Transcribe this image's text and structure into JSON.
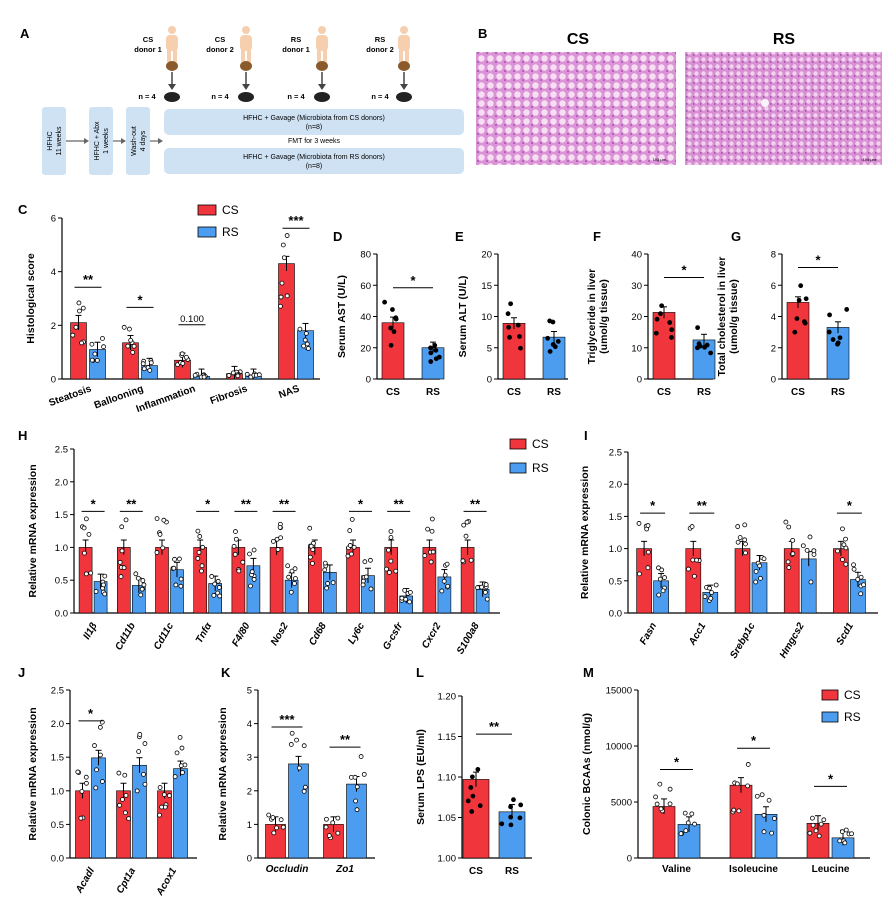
{
  "figure": {
    "colors": {
      "cs": "#f0363c",
      "rs": "#4c9cf0",
      "box": "#cfe2f3",
      "tissue": "#e3a6dc"
    }
  },
  "panelA": {
    "label": "A",
    "donors": [
      {
        "line1": "CS",
        "line2": "donor 1"
      },
      {
        "line1": "CS",
        "line2": "donor 2"
      },
      {
        "line1": "RS",
        "line2": "donor 1"
      },
      {
        "line1": "RS",
        "line2": "donor 2"
      }
    ],
    "n_labels": [
      "n = 4",
      "n = 4",
      "n = 4",
      "n = 4"
    ],
    "boxes": [
      {
        "line1": "HFHC",
        "line2": "11 weeks"
      },
      {
        "line1": "HFHC + Abx",
        "line2": "1 weeks"
      },
      {
        "line1": "Wash-out",
        "line2": "4 days"
      }
    ],
    "rows": [
      {
        "line1": "HFHC + Gavage (Microbiota from CS donors)",
        "line2": "(n=8)"
      },
      {
        "line1": "HFHC + Gavage (Microbiota from RS donors)",
        "line2": "(n=8)"
      }
    ],
    "middle": "FMT for 3 weeks"
  },
  "panelB": {
    "label": "B",
    "left": "CS",
    "right": "RS",
    "scale_left": "100 μm",
    "scale_right": "100 μm"
  },
  "legend": {
    "cs": "CS",
    "rs": "RS"
  },
  "chart_data": [
    {
      "panel": "C",
      "type": "bar",
      "ylabel": "Histological score",
      "ylim": [
        0,
        6
      ],
      "yticks": [
        "0",
        "2",
        "4",
        "6"
      ],
      "categories": [
        "Steatosis",
        "Ballooning",
        "Inflammation",
        "Fibrosis",
        "NAS"
      ],
      "series": [
        {
          "name": "CS",
          "values": [
            2.1,
            1.35,
            0.7,
            0.2,
            4.3
          ]
        },
        {
          "name": "RS",
          "values": [
            1.1,
            0.5,
            0.1,
            0.1,
            1.8
          ]
        }
      ],
      "significance": [
        "**",
        "*",
        "0.100",
        "",
        "***"
      ]
    },
    {
      "panel": "D",
      "type": "bar",
      "ylabel": "Serum AST (U/L)",
      "ylim": [
        0,
        80
      ],
      "yticks": [
        "0",
        "20",
        "40",
        "60",
        "80"
      ],
      "categories": [
        "CS",
        "RS"
      ],
      "values": [
        36,
        20
      ],
      "significance": [
        "*"
      ]
    },
    {
      "panel": "E",
      "type": "bar",
      "ylabel": "Serum ALT (U/L)",
      "ylim": [
        0,
        20
      ],
      "yticks": [
        "0",
        "5",
        "10",
        "15",
        "20"
      ],
      "categories": [
        "CS",
        "RS"
      ],
      "values": [
        8.9,
        6.7
      ],
      "significance": [
        ""
      ]
    },
    {
      "panel": "F",
      "type": "bar",
      "ylabel": "Triglyceride in liver (umol/g tissue)",
      "ylim": [
        0,
        40
      ],
      "yticks": [
        "0",
        "10",
        "20",
        "30",
        "40"
      ],
      "categories": [
        "CS",
        "RS"
      ],
      "values": [
        21.3,
        12.5
      ],
      "significance": [
        "*"
      ]
    },
    {
      "panel": "G",
      "type": "bar",
      "ylabel": "Total cholesterol in liver (umol/g tissue)",
      "ylim": [
        0,
        8
      ],
      "yticks": [
        "0",
        "2",
        "4",
        "6",
        "8"
      ],
      "categories": [
        "CS",
        "RS"
      ],
      "values": [
        4.9,
        3.3
      ],
      "significance": [
        "*"
      ]
    },
    {
      "panel": "H",
      "type": "bar",
      "ylabel": "Relative mRNA expression",
      "ylim": [
        0,
        2.5
      ],
      "yticks": [
        "0.0",
        "0.5",
        "1.0",
        "1.5",
        "2.0",
        "2.5"
      ],
      "categories": [
        "Il1β",
        "Cd11b",
        "Cd11c",
        "Tnfα",
        "F4/80",
        "Nos2",
        "Cd68",
        "Ly6c",
        "G-csfr",
        "Cxcr2",
        "S100a8"
      ],
      "series": [
        {
          "name": "CS",
          "values": [
            1.0,
            1.0,
            1.0,
            1.0,
            1.0,
            1.0,
            1.0,
            1.0,
            1.0,
            1.0,
            1.0
          ]
        },
        {
          "name": "RS",
          "values": [
            0.48,
            0.42,
            0.66,
            0.45,
            0.72,
            0.5,
            0.62,
            0.57,
            0.26,
            0.55,
            0.36
          ]
        }
      ],
      "significance": [
        "*",
        "**",
        "",
        "*",
        "**",
        "**",
        "",
        "*",
        "**",
        "",
        "**"
      ]
    },
    {
      "panel": "I",
      "type": "bar",
      "ylabel": "Relative mRNA expression",
      "ylim": [
        0,
        2.5
      ],
      "yticks": [
        "0.0",
        "0.5",
        "1.0",
        "1.5",
        "2.0",
        "2.5"
      ],
      "categories": [
        "Fasn",
        "Acc1",
        "Srebp1c",
        "Hmgcs2",
        "Scd1"
      ],
      "series": [
        {
          "name": "CS",
          "values": [
            1.0,
            1.0,
            1.0,
            1.0,
            1.0
          ]
        },
        {
          "name": "RS",
          "values": [
            0.5,
            0.32,
            0.78,
            0.84,
            0.52
          ]
        }
      ],
      "significance": [
        "*",
        "**",
        "",
        "",
        "*"
      ]
    },
    {
      "panel": "J",
      "type": "bar",
      "ylabel": "Relative mRNA expression",
      "ylim": [
        0,
        2.5
      ],
      "yticks": [
        "0.0",
        "0.5",
        "1.0",
        "1.5",
        "2.0",
        "2.5"
      ],
      "categories": [
        "Acadl",
        "Cpt1a",
        "Acox1"
      ],
      "series": [
        {
          "name": "CS",
          "values": [
            1.0,
            1.0,
            1.0
          ]
        },
        {
          "name": "RS",
          "values": [
            1.49,
            1.38,
            1.33
          ]
        }
      ],
      "significance": [
        "*",
        "",
        ""
      ]
    },
    {
      "panel": "K",
      "type": "bar",
      "ylabel": "Relative mRNA expression",
      "ylim": [
        0,
        5
      ],
      "yticks": [
        "0",
        "1",
        "2",
        "3",
        "4",
        "5"
      ],
      "categories": [
        "Occludin",
        "Zo1"
      ],
      "series": [
        {
          "name": "CS",
          "values": [
            1.0,
            1.0
          ]
        },
        {
          "name": "RS",
          "values": [
            2.8,
            2.2
          ]
        }
      ],
      "significance": [
        "***",
        "**"
      ]
    },
    {
      "panel": "L",
      "type": "bar",
      "ylabel": "Serum LPS (EU/ml)",
      "ylim": [
        1.0,
        1.2
      ],
      "yticks": [
        "1.00",
        "1.05",
        "1.10",
        "1.15",
        "1.20"
      ],
      "categories": [
        "CS",
        "RS"
      ],
      "values": [
        1.097,
        1.057
      ],
      "significance": [
        "**"
      ]
    },
    {
      "panel": "M",
      "type": "bar",
      "ylabel": "Colonic BCAAs (nmol/g)",
      "ylim": [
        0,
        15000
      ],
      "yticks": [
        "0",
        "5000",
        "10000",
        "15000"
      ],
      "categories": [
        "Valine",
        "Isoleucine",
        "Leucine"
      ],
      "series": [
        {
          "name": "CS",
          "values": [
            4600,
            6500,
            3100
          ]
        },
        {
          "name": "RS",
          "values": [
            3000,
            3900,
            1800
          ]
        }
      ],
      "significance": [
        "*",
        "*",
        "*"
      ]
    }
  ]
}
